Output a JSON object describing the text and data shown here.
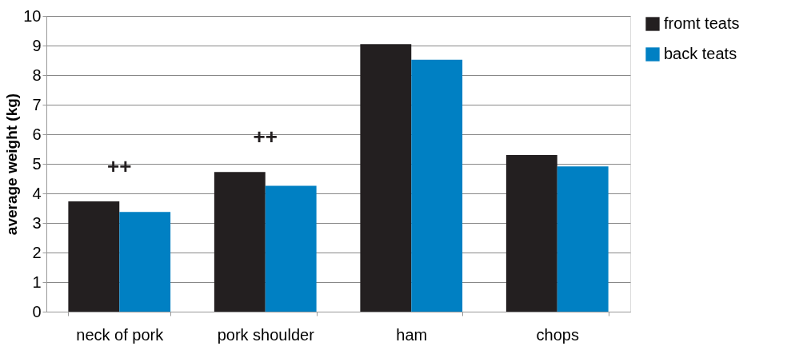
{
  "chart_data": {
    "type": "bar",
    "ylabel": "average weight (kg)",
    "categories": [
      "neck of pork",
      "pork shoulder",
      "ham",
      "chops"
    ],
    "series": [
      {
        "name": "fromt teats",
        "color": "#231f20",
        "values": [
          3.73,
          4.72,
          9.05,
          5.3
        ]
      },
      {
        "name": "back teats",
        "color": "#0080c3",
        "values": [
          3.37,
          4.26,
          8.52,
          4.91
        ]
      }
    ],
    "annotations": [
      "++",
      "++"
    ],
    "ylim": [
      0,
      10
    ],
    "yticks": [
      0,
      1,
      2,
      3,
      4,
      5,
      6,
      7,
      8,
      9,
      10
    ],
    "grid": "y",
    "legend": "right"
  }
}
